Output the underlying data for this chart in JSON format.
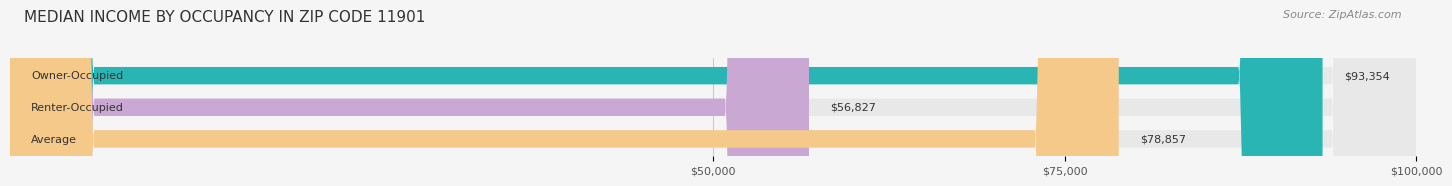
{
  "title": "MEDIAN INCOME BY OCCUPANCY IN ZIP CODE 11901",
  "source": "Source: ZipAtlas.com",
  "categories": [
    "Owner-Occupied",
    "Renter-Occupied",
    "Average"
  ],
  "values": [
    93354,
    56827,
    78857
  ],
  "bar_colors": [
    "#2ab5b5",
    "#c9a8d4",
    "#f5c98a"
  ],
  "value_labels": [
    "$93,354",
    "$56,827",
    "$78,857"
  ],
  "xlim": [
    0,
    100000
  ],
  "xticks": [
    50000,
    75000,
    100000
  ],
  "xtick_labels": [
    "$50,000",
    "$75,000",
    "$100,000"
  ],
  "background_color": "#f5f5f5",
  "bar_background_color": "#e8e8e8",
  "title_fontsize": 11,
  "source_fontsize": 8,
  "label_fontsize": 8,
  "value_fontsize": 8
}
